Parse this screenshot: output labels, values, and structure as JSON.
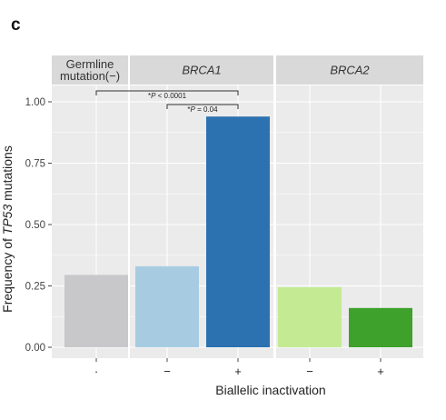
{
  "panel_label": "c",
  "chart_data": {
    "type": "bar",
    "facets": [
      {
        "label_lines": [
          "Germline",
          "mutation(−)"
        ],
        "italic": false
      },
      {
        "label_lines": [
          "BRCA1"
        ],
        "italic": true
      },
      {
        "label_lines": [
          "BRCA2"
        ],
        "italic": true
      }
    ],
    "bars": [
      {
        "facet": 0,
        "category": "-",
        "tick_label": "·",
        "value": 0.295,
        "color": "#C8C8CA"
      },
      {
        "facet": 1,
        "category": "−",
        "tick_label": "−",
        "value": 0.33,
        "color": "#A7CCE2"
      },
      {
        "facet": 1,
        "category": "+",
        "tick_label": "+",
        "value": 0.94,
        "color": "#2C72B0"
      },
      {
        "facet": 2,
        "category": "−",
        "tick_label": "−",
        "value": 0.245,
        "color": "#C4EB93"
      },
      {
        "facet": 2,
        "category": "+",
        "tick_label": "+",
        "value": 0.16,
        "color": "#3EA12B"
      }
    ],
    "ylim": [
      0,
      1.05
    ],
    "yticks": [
      0,
      0.25,
      0.5,
      0.75,
      1.0
    ],
    "ytick_labels": [
      "0.00",
      "0.25",
      "0.50",
      "0.75",
      "1.00"
    ],
    "ylabel_parts": [
      "Frequency of ",
      "TP53",
      " mutations"
    ],
    "xlabel": "Biallelic inactivation",
    "grid": true,
    "significance": [
      {
        "from_bar": 0,
        "to_bar": 2,
        "label_prefix": "*",
        "label_p": "P",
        "label_rest": " < 0.0001"
      },
      {
        "from_bar": 1,
        "to_bar": 2,
        "label_prefix": "*",
        "label_p": "P",
        "label_rest": " = 0.04"
      }
    ],
    "colors": {
      "panel_background": "#EBEBEB",
      "grid": "#FFFFFF",
      "strip_background": "#D9D9D9"
    }
  }
}
